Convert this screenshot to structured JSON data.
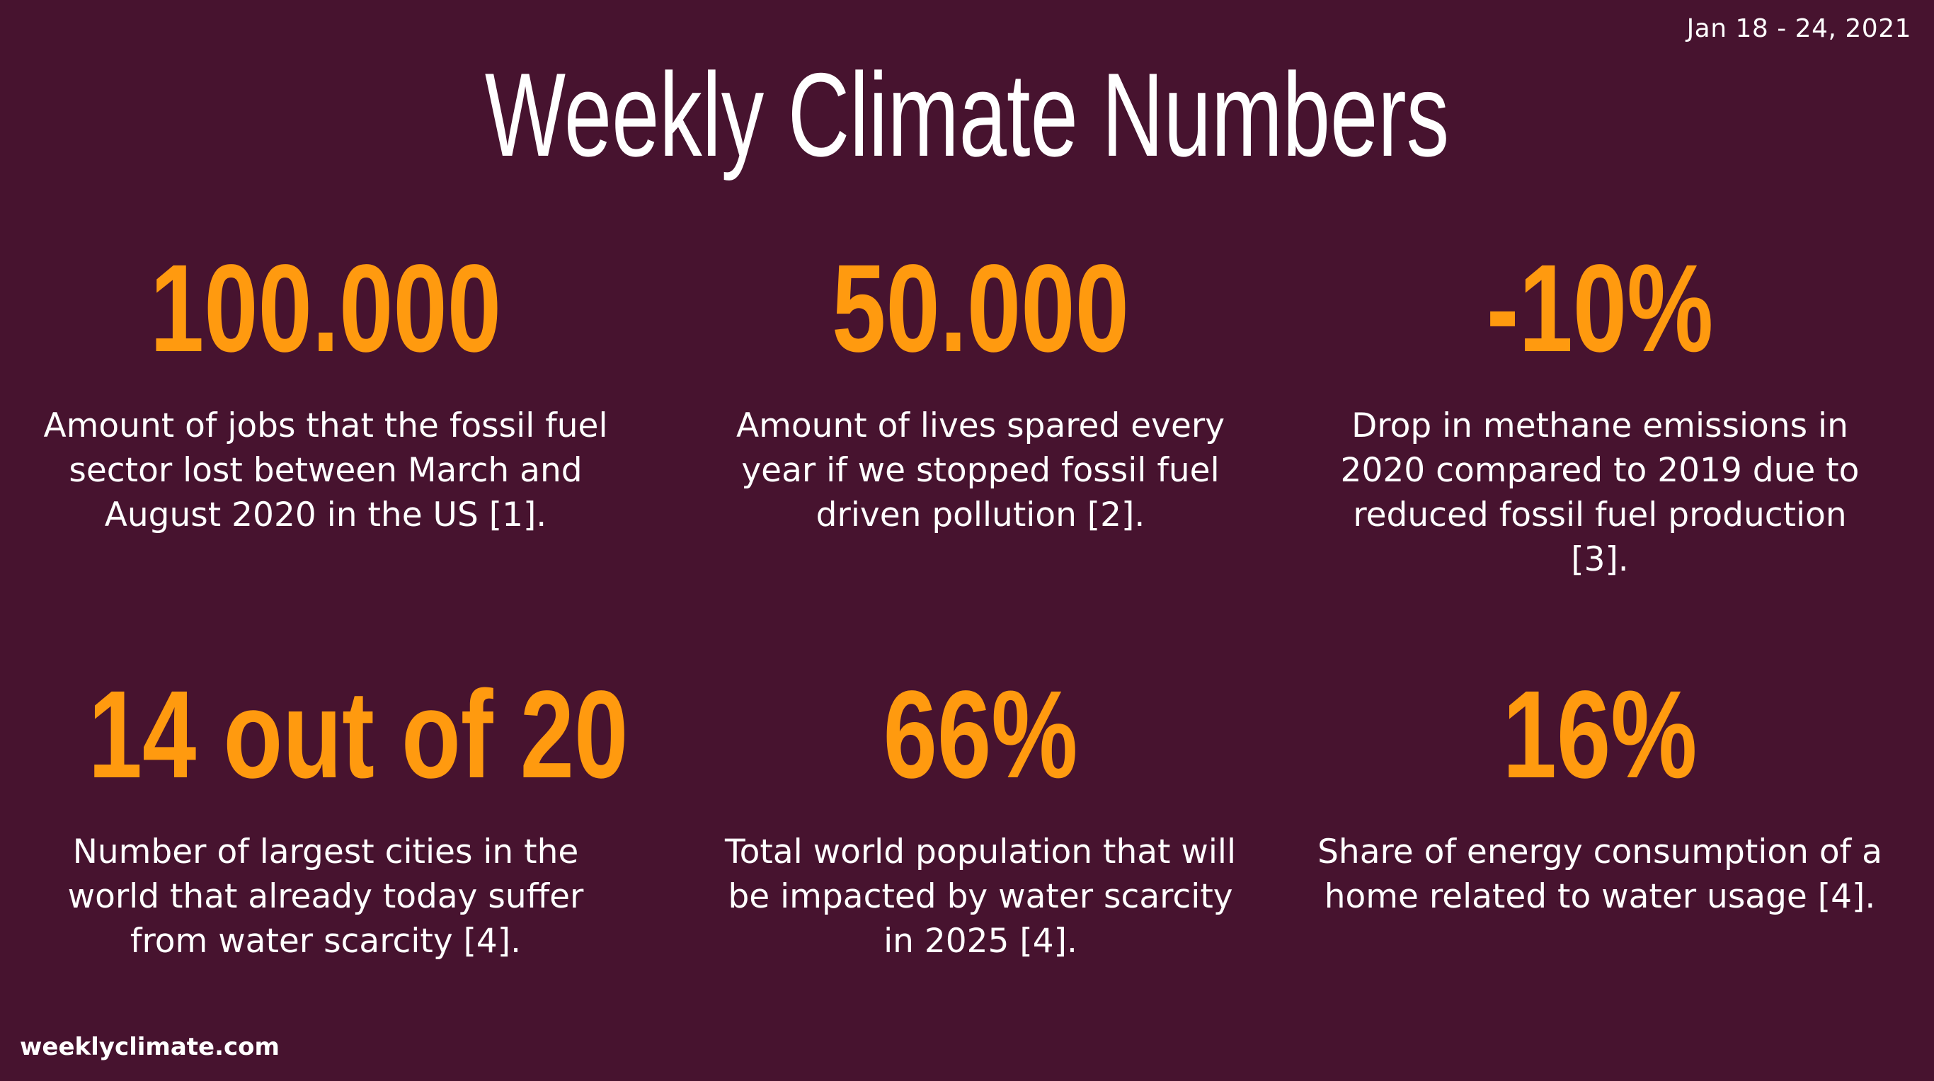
{
  "header": {
    "date_range": "Jan 18 - 24, 2021",
    "title": "Weekly Climate Numbers"
  },
  "stats": [
    {
      "value": "100.000",
      "description": "Amount of jobs that the fossil fuel sector lost between March and August 2020 in the US [1]."
    },
    {
      "value": "50.000",
      "description": "Amount of lives spared every year if we stopped fossil fuel driven pollution [2]."
    },
    {
      "value": "-10%",
      "description": "Drop in methane emissions in 2020 compared to 2019 due to reduced fossil fuel production [3]."
    },
    {
      "value": "14 out of 20",
      "description": "Number of largest cities in the world that already today suffer from water scarcity [4]."
    },
    {
      "value": "66%",
      "description": "Total world population that will be impacted by water scarcity in 2025 [4]."
    },
    {
      "value": "16%",
      "description": "Share of energy consumption of a home related to water usage [4]."
    }
  ],
  "footer": {
    "site": "weeklyclimate.com"
  },
  "colors": {
    "background": "#47132f",
    "accent": "#ff9a0f",
    "text": "#ffffff"
  }
}
